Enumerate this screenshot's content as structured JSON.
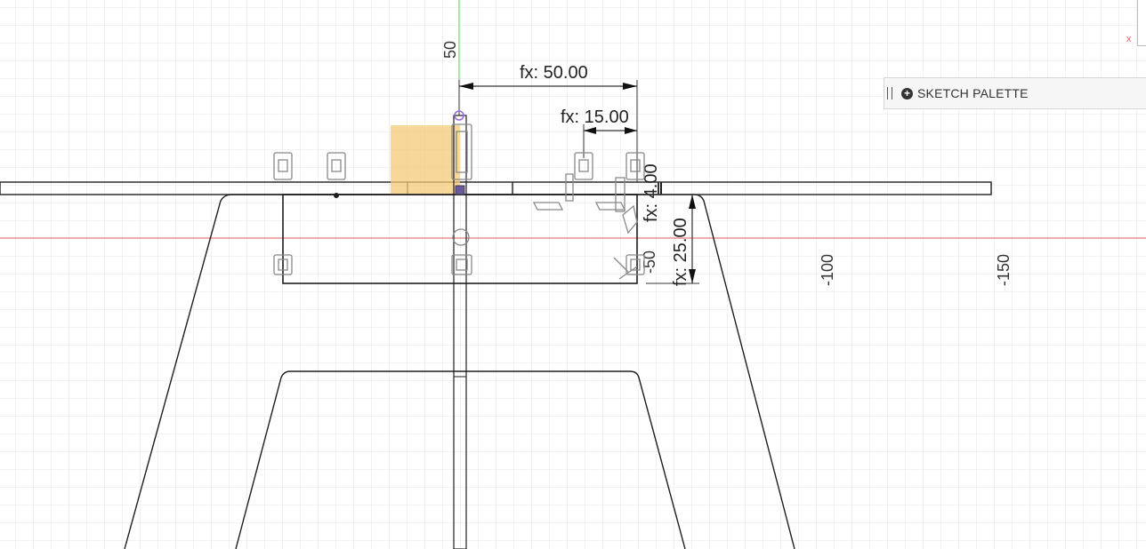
{
  "sketch_palette": {
    "label": "SKETCH PALETTE"
  },
  "corner_axis_label": "x",
  "axis_labels": {
    "y_50": "50",
    "x_neg50": "-50",
    "x_neg100": "-100",
    "x_neg150": "-150"
  },
  "dimensions": {
    "width_50": "fx: 50.00",
    "width_15": "fx: 15.00",
    "height_4": "fx: 4.00",
    "height_25": "fx: 25.00"
  },
  "colors": {
    "grid": "#e3e3e3",
    "red_axis": "#e05a5a",
    "green_axis": "#5cc85c",
    "sketch_line": "#1e1e1e",
    "highlight": "#f5c97a",
    "constraint_purple": "#9b6bdd"
  }
}
